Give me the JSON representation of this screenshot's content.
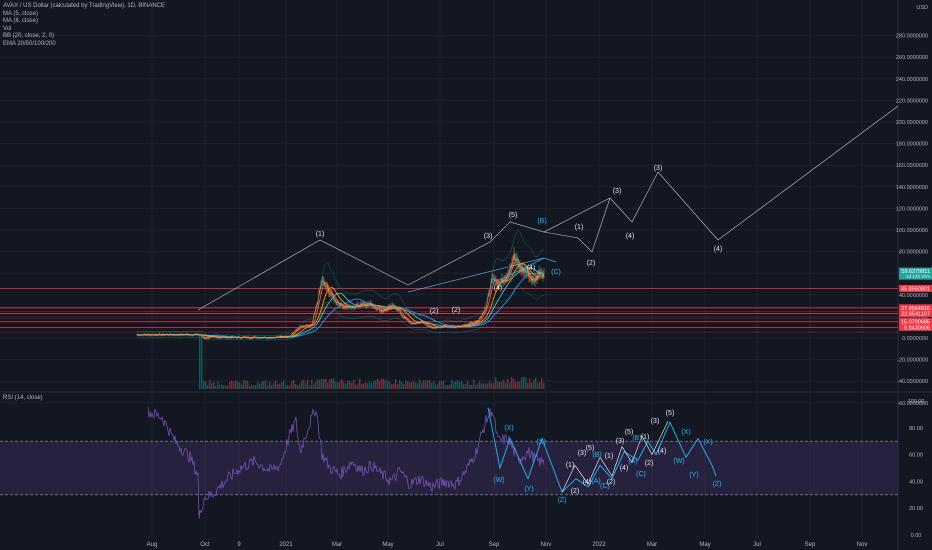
{
  "header": {
    "title": "AVAX / US Dollar (calculated by TradingView), 1D, BINANCE",
    "indicators": [
      "MA (5, close)",
      "MA (8, close)",
      "Vol",
      "BB (20, close, 2, 0)",
      "EMA 20/50/100/200"
    ]
  },
  "rsi": {
    "label": "RSI (14, close)",
    "ticks": [
      "100.00",
      "80.00",
      "60.00",
      "40.00",
      "20.00",
      "0.00"
    ]
  },
  "price_axis": {
    "currency": "USD",
    "ticks": [
      "280.0000000",
      "260.0000000",
      "240.0000000",
      "220.0000000",
      "200.0000000",
      "180.0000000",
      "160.0000000",
      "140.0000000",
      "120.0000000",
      "100.0000000",
      "80.0000000",
      "60.0000000",
      "40.0000000",
      "20.0000000",
      "0.0000000",
      "-20.0000000",
      "-40.0000000",
      "-60.0000000"
    ],
    "current_price": "59.6279811",
    "current_price_sub": "1d 12h 37m",
    "levels": [
      "45.8560801",
      "27.9564816",
      "22.6541107",
      "15.0790685",
      "9.8430606"
    ],
    "level_colors": [
      "#f23645",
      "#f23645",
      "#f23645",
      "#f23645",
      "#f23645"
    ]
  },
  "time_axis": {
    "ticks": [
      "Aug",
      "Oct",
      "9",
      "2021",
      "Mar",
      "May",
      "Jul",
      "Sep",
      "Nov",
      "2022",
      "Mar",
      "May",
      "Jul",
      "Sep",
      "Nov"
    ]
  },
  "wave_labels": {
    "price": [
      "(1)",
      "(2)",
      "(3)",
      "(4)",
      "(5)",
      "(2)",
      "(B)",
      "(C)",
      "(1)",
      "(2)",
      "(3)",
      "(4)",
      "(3)",
      "(4)",
      "(4)",
      "(A)"
    ],
    "rsi": [
      "(X)",
      "(X)",
      "(W)",
      "(Y)",
      "(Z)",
      "(1)",
      "(2)",
      "(3)",
      "(4)",
      "(5)",
      "(A)",
      "(B)",
      "(C)",
      "(1)",
      "(2)",
      "(3)",
      "(4)",
      "(5)",
      "(A)",
      "(B)",
      "(C)",
      "(1)",
      "(2)",
      "(3)",
      "(4)",
      "(5)",
      "(X)",
      "(W)",
      "(X)",
      "(Y)",
      "(Z)"
    ]
  },
  "colors": {
    "background": "#131722",
    "price_line_up": "#26a69a",
    "level_red": "#f23645",
    "ema_orange": "#ff9800",
    "ma_red": "#ef5350",
    "ema_blue": "#2196f3",
    "rsi_line": "#7e57c2",
    "rsi_band": "#7e57c2",
    "projection_cyan": "#29b6f6"
  }
}
